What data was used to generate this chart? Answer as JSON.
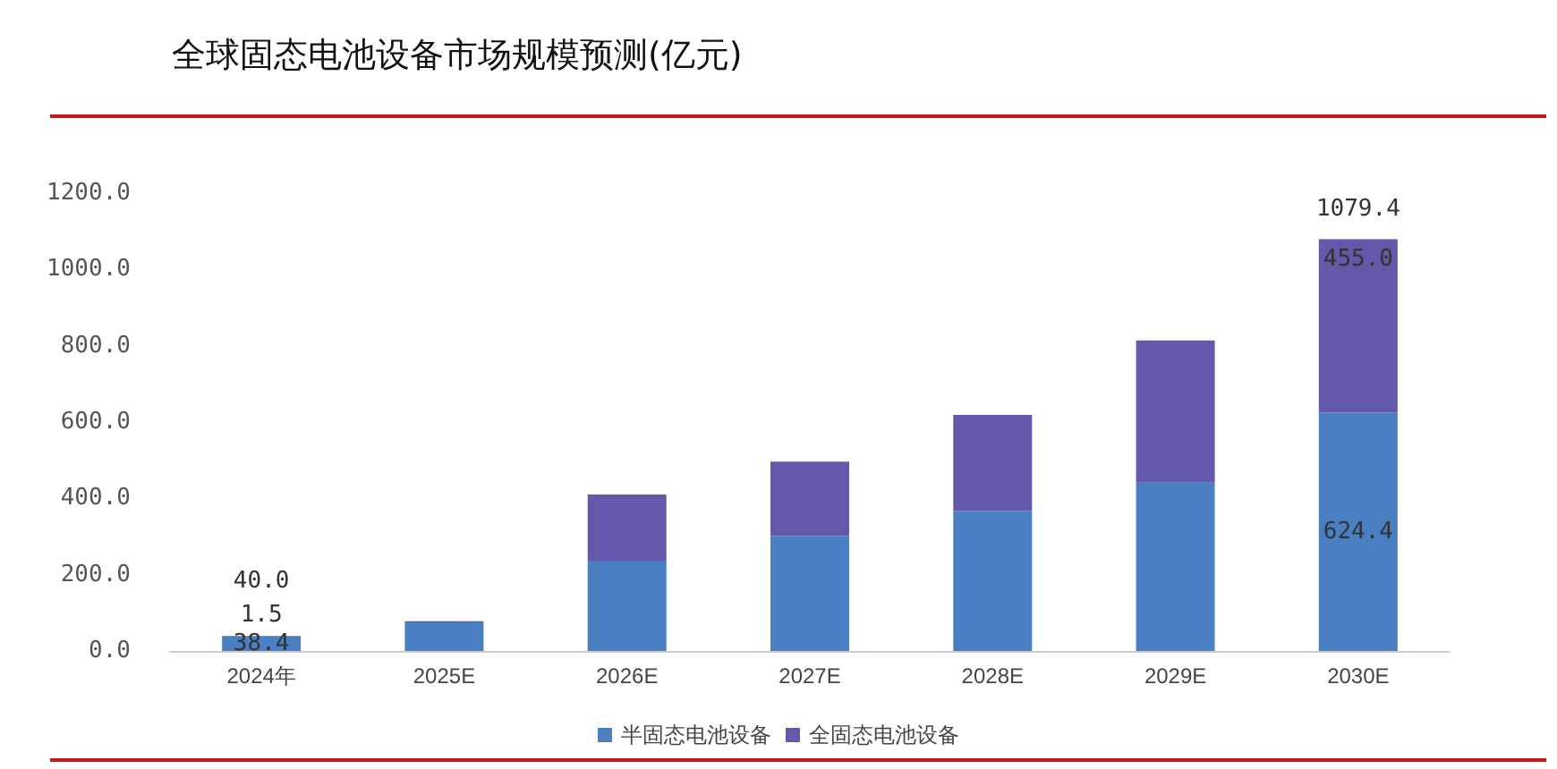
{
  "chart_data": {
    "type": "bar",
    "title": "全球固态电池设备市场规模预测(亿元)",
    "categories": [
      "2024年",
      "2025E",
      "2026E",
      "2027E",
      "2028E",
      "2029E",
      "2030E"
    ],
    "stacked": true,
    "series": [
      {
        "name": "半固态电池设备",
        "color": "#4a7fc1",
        "values": [
          38.4,
          75,
          237,
          301,
          367,
          441,
          624.4
        ],
        "value_labels": [
          "38.4",
          null,
          null,
          null,
          null,
          null,
          "624.4"
        ]
      },
      {
        "name": "全固态电池设备",
        "color": "#6458aa",
        "values": [
          1.5,
          3,
          173,
          195,
          252,
          373,
          455.0
        ],
        "value_labels": [
          "1.5",
          null,
          null,
          null,
          null,
          null,
          "455.0"
        ]
      }
    ],
    "totals": [
      "40.0",
      null,
      null,
      null,
      null,
      null,
      "1079.4"
    ],
    "ylim": [
      0,
      1200
    ],
    "yticks": [
      {
        "value": 0,
        "label": "0.0"
      },
      {
        "value": 200,
        "label": "200.0"
      },
      {
        "value": 400,
        "label": "400.0"
      },
      {
        "value": 600,
        "label": "600.0"
      },
      {
        "value": 800,
        "label": "800.0"
      },
      {
        "value": 1000,
        "label": "1000.0"
      },
      {
        "value": 1200,
        "label": "1200.0"
      }
    ],
    "grid": false,
    "legend": "bottom"
  }
}
